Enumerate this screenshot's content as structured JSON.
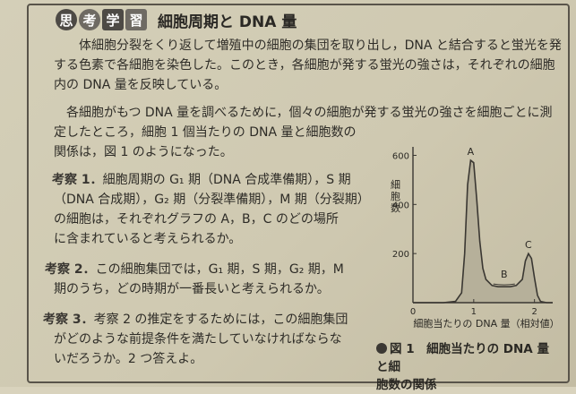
{
  "header": {
    "badges": [
      "思",
      "考",
      "学",
      "習"
    ],
    "title": "細胞周期と DNA 量"
  },
  "intro": {
    "lines": [
      "体細胞分裂をくり返して増殖中の細胞の集団を取り出し，DNA と結合すると蛍光を発",
      "する色素で各細胞を染色した。このとき，各細胞が発する蛍光の強さは，それぞれの細胞",
      "内の DNA 量を反映している。",
      "各細胞がもつ DNA 量を調べるために，個々の細胞が発する蛍光の強さを細胞ごとに測",
      "定したところ，細胞 1 個当たりの DNA 量と細胞数の",
      "関係は，図 1 のようになった。"
    ]
  },
  "questions": [
    {
      "label": "考察 1．",
      "lines": [
        "細胞周期の G₁ 期（DNA 合成準備期），S 期",
        "（DNA 合成期），G₂ 期（分裂準備期），M 期（分裂期）",
        "の細胞は，それぞれグラフの A，B，C のどの場所",
        "に含まれていると考えられるか。"
      ]
    },
    {
      "label": "考察 2．",
      "lines": [
        "この細胞集団では，G₁ 期，S 期，G₂ 期，M",
        "期のうち，どの時期が一番長いと考えられるか。"
      ]
    },
    {
      "label": "考察 3．",
      "lines": [
        "考察 2 の推定をするためには，この細胞集団",
        "がどのような前提条件を満たしていなければならな",
        "いだろうか。2 つ答えよ。"
      ]
    }
  ],
  "figure": {
    "caption_line1": "図 1　細胞当たりの DNA 量と細",
    "caption_line2": "胞数の関係"
  },
  "chart_data": {
    "type": "area",
    "xlabel": "細胞当たりの DNA 量（相対値）",
    "ylabel": "細胞数",
    "x_ticks": [
      "0",
      "1",
      "2"
    ],
    "y_ticks": [
      "0",
      "200",
      "400",
      "600"
    ],
    "xlim": [
      0,
      2.3
    ],
    "ylim": [
      0,
      620
    ],
    "x": [
      0.0,
      0.5,
      0.7,
      0.8,
      0.85,
      0.9,
      0.95,
      1.0,
      1.05,
      1.1,
      1.15,
      1.2,
      1.3,
      1.4,
      1.5,
      1.6,
      1.7,
      1.8,
      1.85,
      1.9,
      1.95,
      2.0,
      2.05,
      2.1,
      2.2,
      2.3
    ],
    "y": [
      0,
      0,
      5,
      40,
      200,
      480,
      580,
      570,
      420,
      250,
      140,
      95,
      70,
      65,
      65,
      65,
      70,
      95,
      170,
      200,
      180,
      100,
      30,
      5,
      0,
      0
    ],
    "annotations": [
      {
        "label": "A",
        "x": 0.95,
        "y": 580
      },
      {
        "label": "B",
        "x": 1.5,
        "y": 65
      },
      {
        "label": "C",
        "x": 1.9,
        "y": 200
      }
    ]
  },
  "colors": {
    "fill": "#b6b09a",
    "stroke": "#3a3732"
  }
}
